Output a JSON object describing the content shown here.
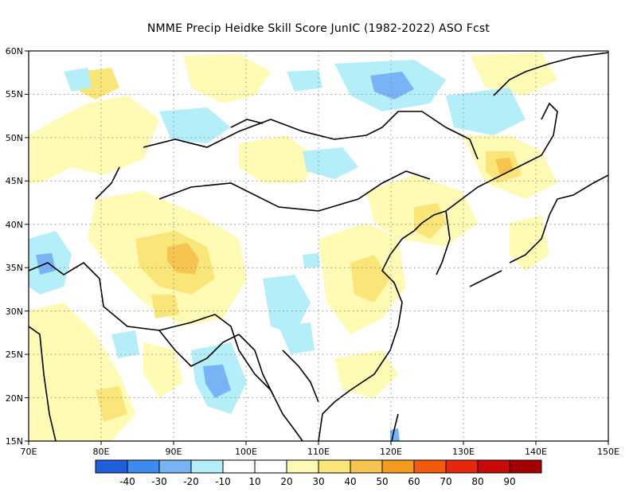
{
  "title": "NMME Precip Heidke Skill Score JunIC (1982-2022) ASO Fcst",
  "map": {
    "lon_range": [
      70,
      150
    ],
    "lat_range": [
      15,
      60
    ],
    "lon_ticks": [
      "70E",
      "80E",
      "90E",
      "100E",
      "110E",
      "120E",
      "130E",
      "140E",
      "150E"
    ],
    "lat_ticks": [
      "60N",
      "55N",
      "50N",
      "45N",
      "40N",
      "35N",
      "30N",
      "25N",
      "20N",
      "15N"
    ],
    "gridlines": "dotted"
  },
  "colorbar": {
    "colors": [
      "#1f5fdc",
      "#3c8cf0",
      "#78b4f5",
      "#b4eef8",
      "#ffffff",
      "#fffab4",
      "#fae678",
      "#f8c450",
      "#f59b1e",
      "#f55a0a",
      "#e6280a",
      "#c80a0a",
      "#a50000"
    ],
    "labels": [
      "-40",
      "-30",
      "-20",
      "-10",
      "10",
      "20",
      "30",
      "40",
      "50",
      "60",
      "70",
      "80",
      "90"
    ]
  },
  "colors": {
    "lightblue": "#b4eef8",
    "medblue": "#78b4f5",
    "lightyellow": "#fffab4",
    "yellow": "#fae678",
    "orange": "#f8c450"
  }
}
